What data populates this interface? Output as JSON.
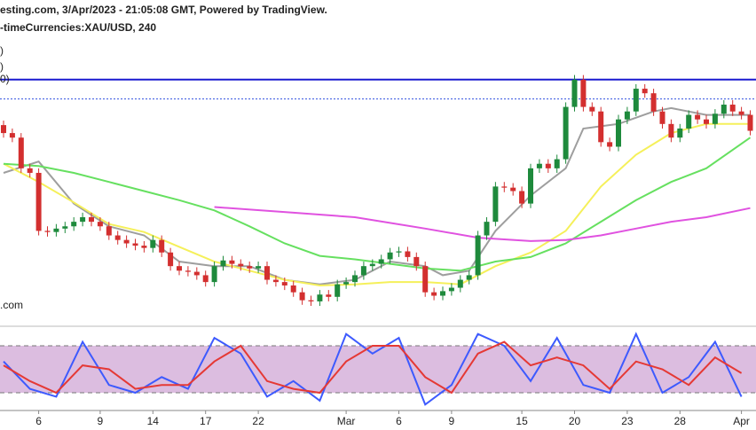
{
  "chart_data": [
    {
      "type": "candlestick",
      "title": "esting.com, 3/Apr/2023 - 21:05:08 GMT, Powered by TradingView.",
      "subtitle": "-timeCurrencies:XAU/USD, 240",
      "annotations": [
        ")",
        ")",
        "0)",
        ".com"
      ],
      "open": [
        1960,
        1953,
        1949,
        1922,
        1918,
        1867,
        1866,
        1869,
        1871,
        1875,
        1879,
        1875,
        1871,
        1863,
        1859,
        1856,
        1854,
        1852,
        1859,
        1848,
        1836,
        1832,
        1831,
        1828,
        1822,
        1836,
        1841,
        1838,
        1836,
        1834,
        1836,
        1824,
        1822,
        1819,
        1813,
        1806,
        1805,
        1811,
        1809,
        1820,
        1822,
        1828,
        1836,
        1838,
        1842,
        1848,
        1849,
        1844,
        1836,
        1813,
        1810,
        1814,
        1817,
        1824,
        1828,
        1863,
        1875,
        1906,
        1905,
        1902,
        1891,
        1922,
        1926,
        1922,
        1930,
        1976,
        2000,
        1976,
        1972,
        1945,
        1941,
        1965,
        1972,
        1992,
        1988,
        1972,
        1961,
        1949,
        1957,
        1969,
        1965,
        1961,
        1970,
        1978,
        1972,
        1969
      ],
      "high": [
        1964,
        1957,
        1953,
        1926,
        1922,
        1871,
        1873,
        1875,
        1879,
        1883,
        1883,
        1879,
        1875,
        1867,
        1863,
        1860,
        1858,
        1863,
        1863,
        1852,
        1840,
        1836,
        1835,
        1832,
        1840,
        1845,
        1845,
        1842,
        1840,
        1840,
        1840,
        1828,
        1826,
        1823,
        1817,
        1810,
        1815,
        1815,
        1824,
        1826,
        1832,
        1840,
        1842,
        1846,
        1852,
        1853,
        1853,
        1848,
        1840,
        1817,
        1818,
        1821,
        1828,
        1832,
        1867,
        1879,
        1910,
        1910,
        1909,
        1906,
        1926,
        1930,
        1930,
        1934,
        1980,
        2004,
        2004,
        1980,
        1976,
        1949,
        1969,
        1976,
        1996,
        1996,
        1992,
        1976,
        1965,
        1961,
        1973,
        1973,
        1969,
        1974,
        1982,
        1982,
        1976,
        1973
      ],
      "low": [
        1949,
        1945,
        1918,
        1914,
        1863,
        1862,
        1862,
        1865,
        1867,
        1871,
        1871,
        1867,
        1859,
        1855,
        1852,
        1850,
        1848,
        1848,
        1844,
        1832,
        1828,
        1827,
        1824,
        1818,
        1818,
        1832,
        1834,
        1832,
        1830,
        1830,
        1820,
        1818,
        1815,
        1809,
        1802,
        1801,
        1801,
        1805,
        1805,
        1816,
        1818,
        1824,
        1832,
        1834,
        1838,
        1844,
        1840,
        1832,
        1809,
        1806,
        1806,
        1810,
        1813,
        1820,
        1824,
        1859,
        1871,
        1901,
        1898,
        1887,
        1887,
        1918,
        1918,
        1918,
        1926,
        1972,
        1972,
        1968,
        1941,
        1937,
        1937,
        1961,
        1968,
        1984,
        1968,
        1957,
        1945,
        1945,
        1953,
        1961,
        1957,
        1957,
        1966,
        1968,
        1965,
        1951
      ],
      "close": [
        1953,
        1949,
        1922,
        1918,
        1867,
        1866,
        1869,
        1871,
        1875,
        1879,
        1875,
        1871,
        1863,
        1859,
        1856,
        1854,
        1852,
        1859,
        1848,
        1836,
        1832,
        1831,
        1828,
        1822,
        1836,
        1841,
        1838,
        1836,
        1834,
        1836,
        1824,
        1822,
        1819,
        1813,
        1806,
        1805,
        1811,
        1809,
        1820,
        1822,
        1828,
        1836,
        1838,
        1842,
        1848,
        1849,
        1844,
        1836,
        1813,
        1810,
        1814,
        1817,
        1824,
        1828,
        1863,
        1875,
        1906,
        1905,
        1902,
        1891,
        1922,
        1926,
        1922,
        1930,
        1976,
        2000,
        1976,
        1972,
        1945,
        1941,
        1965,
        1972,
        1992,
        1988,
        1972,
        1961,
        1949,
        1957,
        1969,
        1965,
        1961,
        1970,
        1978,
        1972,
        1969,
        1955
      ],
      "up_color": "#1e8a3c",
      "down_color": "#d32f2f",
      "series": [
        {
          "color": "#9e9e9e",
          "x": [
            0,
            4,
            8,
            12,
            16,
            20,
            24,
            28,
            32,
            36,
            40,
            44,
            48,
            50,
            53,
            56,
            60,
            64,
            66,
            70,
            74,
            76,
            80,
            85
          ],
          "values": [
            1918,
            1928,
            1891,
            1871,
            1863,
            1840,
            1836,
            1836,
            1824,
            1820,
            1824,
            1840,
            1836,
            1828,
            1832,
            1867,
            1898,
            1922,
            1957,
            1961,
            1972,
            1975,
            1969,
            1969
          ]
        },
        {
          "color": "#f5f05a",
          "x": [
            0,
            4,
            8,
            12,
            16,
            20,
            24,
            28,
            32,
            36,
            40,
            44,
            48,
            52,
            56,
            60,
            64,
            68,
            72,
            76,
            80,
            85
          ],
          "values": [
            1926,
            1910,
            1892,
            1873,
            1866,
            1853,
            1840,
            1832,
            1824,
            1819,
            1820,
            1822,
            1822,
            1820,
            1836,
            1848,
            1867,
            1906,
            1934,
            1953,
            1961,
            1961
          ]
        },
        {
          "color": "#66e060",
          "x": [
            0,
            4,
            8,
            12,
            16,
            20,
            24,
            28,
            32,
            36,
            40,
            44,
            48,
            52,
            56,
            60,
            64,
            68,
            72,
            76,
            80,
            85
          ],
          "values": [
            1926,
            1924,
            1918,
            1910,
            1902,
            1894,
            1885,
            1871,
            1856,
            1845,
            1842,
            1838,
            1834,
            1832,
            1840,
            1844,
            1856,
            1875,
            1894,
            1910,
            1922,
            1949
          ]
        },
        {
          "color": "#e052e0",
          "x": [
            24,
            33,
            40,
            48,
            54,
            60,
            64,
            68,
            72,
            76,
            80,
            85
          ],
          "values": [
            1888,
            1883,
            1879,
            1869,
            1861,
            1858,
            1859,
            1863,
            1869,
            1875,
            1879,
            1887
          ]
        }
      ],
      "hlines": [
        {
          "value": 2000,
          "color": "#1a1ad0"
        },
        {
          "value": 1983,
          "color": "#3050e0"
        }
      ],
      "xlim": [
        0,
        85
      ],
      "ylim": [
        1780,
        2070
      ],
      "xticks": [
        {
          "value": 4,
          "label": "6"
        },
        {
          "value": 11,
          "label": "9"
        },
        {
          "value": 17,
          "label": "14"
        },
        {
          "value": 23,
          "label": "17"
        },
        {
          "value": 29,
          "label": "22"
        },
        {
          "value": 39,
          "label": "Mar"
        },
        {
          "value": 45,
          "label": "6"
        },
        {
          "value": 51,
          "label": "9"
        },
        {
          "value": 59,
          "label": "15"
        },
        {
          "value": 65,
          "label": "20"
        },
        {
          "value": 71,
          "label": "23"
        },
        {
          "value": 77,
          "label": "28"
        },
        {
          "value": 84,
          "label": "Apr"
        }
      ]
    },
    {
      "type": "line",
      "series": [
        {
          "color": "#3d5afe",
          "x": [
            0,
            3,
            6,
            9,
            12,
            15,
            18,
            21,
            24,
            27,
            30,
            33,
            36,
            39,
            42,
            45,
            48,
            51,
            54,
            57,
            60,
            63,
            66,
            69,
            72,
            75,
            78,
            81,
            84
          ],
          "values": [
            60,
            25,
            15,
            85,
            30,
            20,
            40,
            25,
            90,
            70,
            15,
            35,
            10,
            95,
            70,
            90,
            5,
            30,
            95,
            80,
            35,
            90,
            30,
            20,
            95,
            20,
            40,
            85,
            15
          ]
        },
        {
          "color": "#e53935",
          "x": [
            0,
            3,
            6,
            9,
            12,
            15,
            18,
            21,
            24,
            27,
            30,
            33,
            36,
            39,
            42,
            45,
            48,
            51,
            54,
            57,
            60,
            63,
            66,
            69,
            72,
            75,
            78,
            81,
            84
          ],
          "values": [
            55,
            35,
            20,
            55,
            50,
            25,
            30,
            30,
            60,
            80,
            35,
            25,
            20,
            60,
            80,
            80,
            40,
            20,
            70,
            85,
            55,
            65,
            55,
            25,
            60,
            50,
            30,
            65,
            45
          ]
        }
      ],
      "band": [
        20,
        80
      ],
      "band_color": "#dcbde0",
      "xlim": [
        0,
        85
      ],
      "ylim": [
        0,
        100
      ]
    }
  ]
}
